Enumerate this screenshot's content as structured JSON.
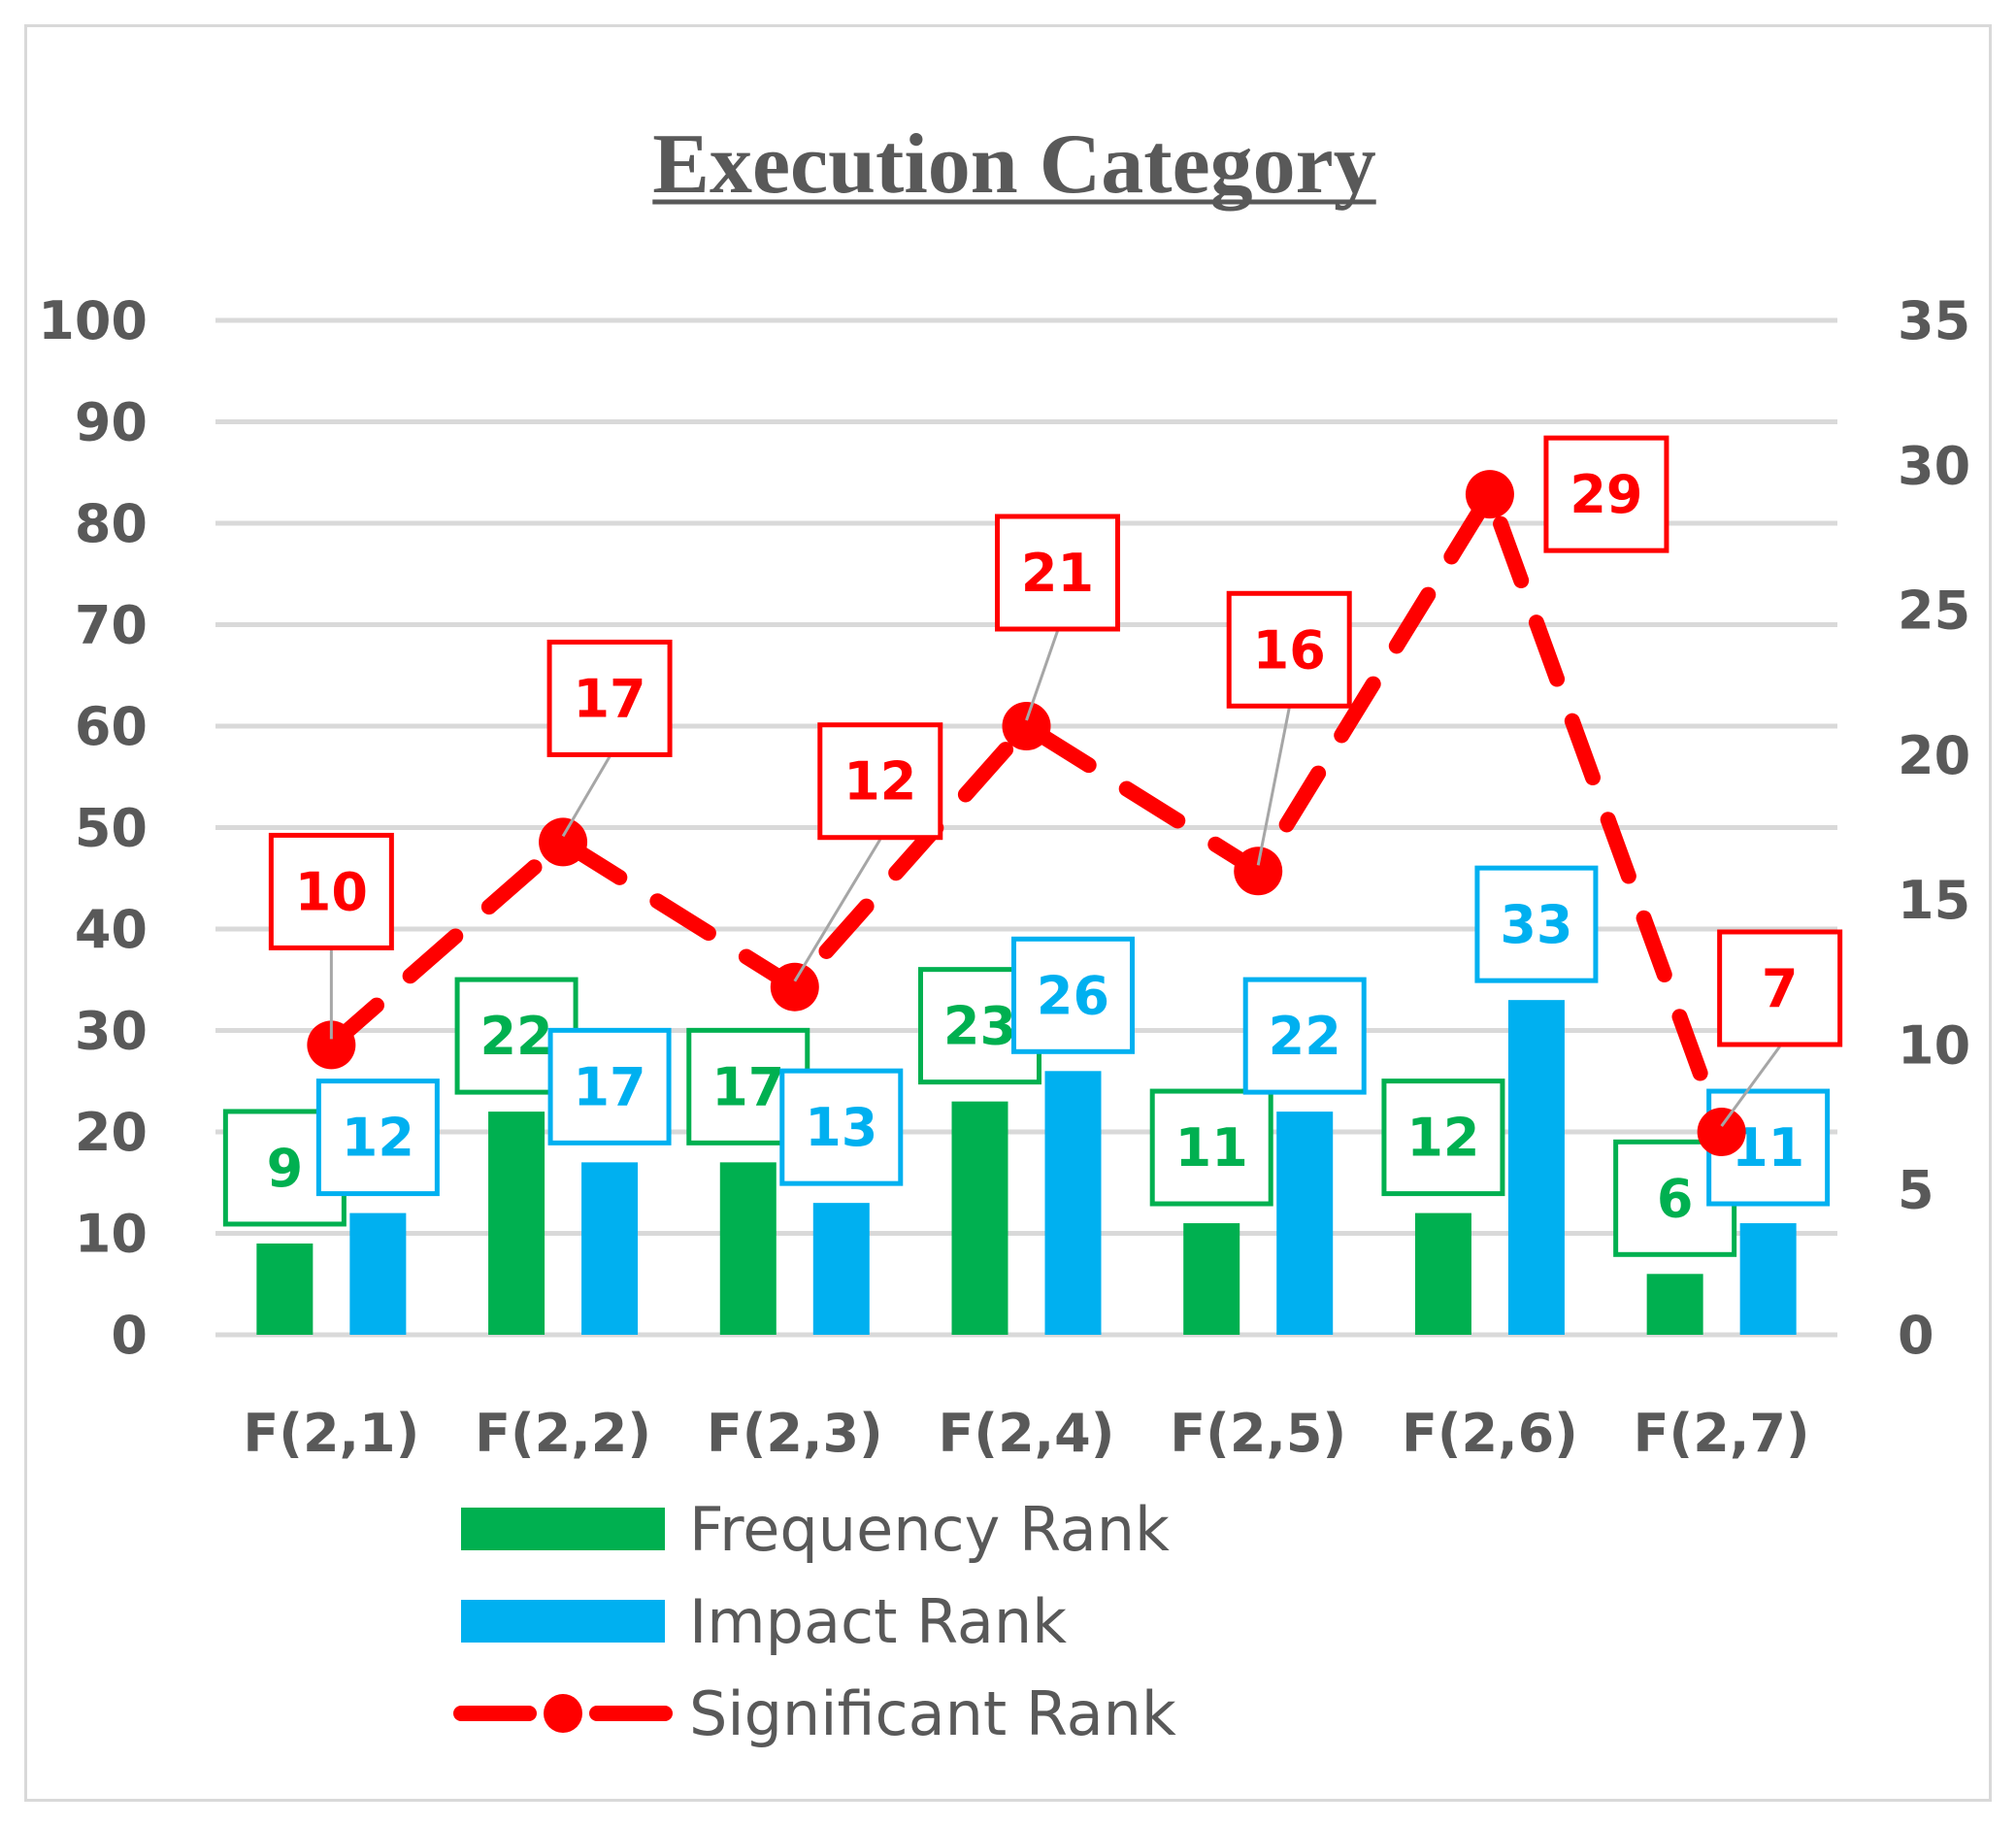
{
  "chart_data": {
    "type": "bar",
    "title": "Execution Category",
    "categories": [
      "F(2,1)",
      "F(2,2)",
      "F(2,3)",
      "F(2,4)",
      "F(2,5)",
      "F(2,6)",
      "F(2,7)"
    ],
    "series": [
      {
        "name": "Frequency Rank",
        "type": "bar",
        "axis": "left",
        "color": "#00b050",
        "values": [
          9,
          22,
          17,
          23,
          11,
          12,
          6
        ]
      },
      {
        "name": "Impact Rank",
        "type": "bar",
        "axis": "left",
        "color": "#00b0f0",
        "values": [
          12,
          17,
          13,
          26,
          22,
          33,
          11
        ]
      },
      {
        "name": "Significant Rank",
        "type": "line",
        "style": "dashed",
        "marker": "circle",
        "axis": "right",
        "color": "#ff0000",
        "values": [
          10,
          17,
          12,
          21,
          16,
          29,
          7
        ]
      }
    ],
    "y_left": {
      "min": 0,
      "max": 100,
      "ticks": [
        "0",
        "10",
        "20",
        "30",
        "40",
        "50",
        "60",
        "70",
        "80",
        "90",
        "100"
      ]
    },
    "y_right": {
      "min": 0,
      "max": 35,
      "ticks": [
        "0",
        "5",
        "10",
        "15",
        "20",
        "25",
        "30",
        "35"
      ]
    },
    "grid": true,
    "legend_position": "bottom"
  }
}
